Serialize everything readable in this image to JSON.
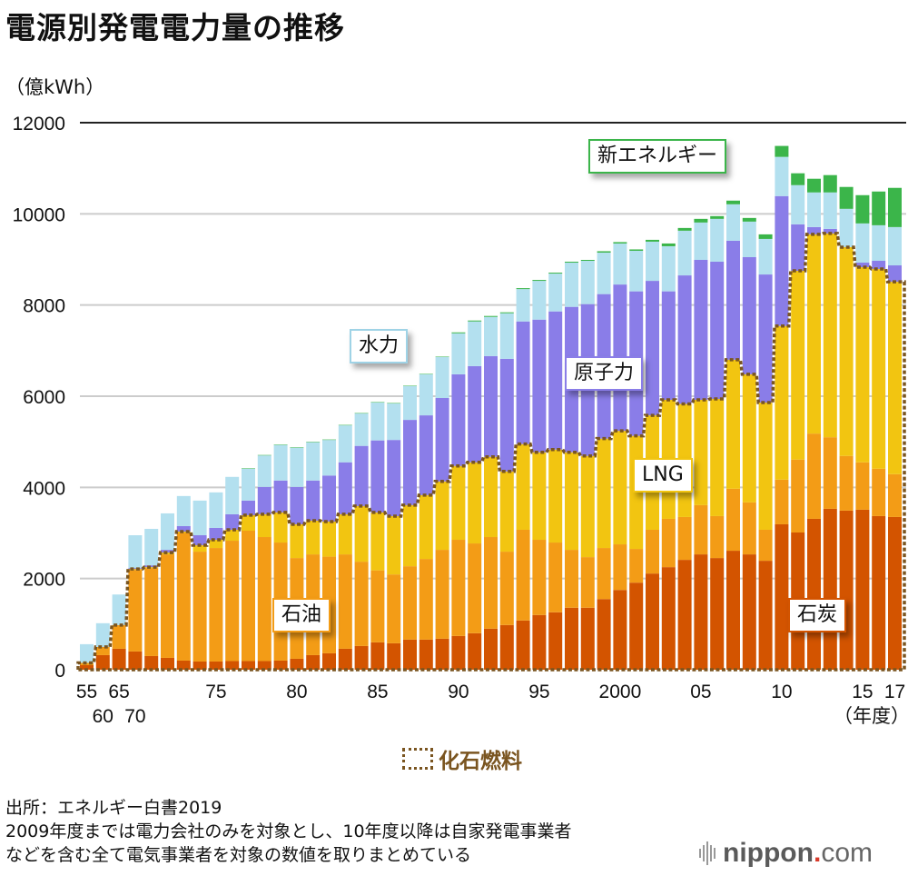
{
  "title": "電源別発電電力量の推移",
  "unit_label": "（億kWh）",
  "x_unit_label": "（年度）",
  "labels": {
    "new_energy": "新エネルギー",
    "hydro": "水力",
    "nuclear": "原子力",
    "lng": "LNG",
    "oil": "石油",
    "coal": "石炭",
    "fossil": "化石燃料"
  },
  "notes": {
    "source": "出所：エネルギー白書2019",
    "line1": "2009年度までは電力会社のみを対象とし、10年度以降は自家発電事業者",
    "line2": "などを含む全て電気事業者を対象の数値を取りまとめている"
  },
  "brand": {
    "name": "nippon",
    "dot": ".",
    "tld": "com"
  },
  "colors": {
    "coal": "#d35400",
    "oil": "#f39c16",
    "lng": "#f2c511",
    "nuclear": "#8a7de8",
    "hydro": "#b3e0ef",
    "new_energy": "#3bb54a",
    "fossil_line": "#7a5520",
    "grid": "#cccccc",
    "top_line": "#222222"
  },
  "chart_data": {
    "type": "bar",
    "stacked": true,
    "title": "電源別発電電力量の推移",
    "ylabel": "億kWh",
    "xlabel": "年度",
    "ylim": [
      0,
      12000
    ],
    "yticks": [
      0,
      2000,
      4000,
      6000,
      8000,
      10000,
      12000
    ],
    "grid": true,
    "x_tick_labels": [
      {
        "year": 1955,
        "label": "55",
        "row": 1
      },
      {
        "year": 1960,
        "label": "60",
        "row": 2
      },
      {
        "year": 1965,
        "label": "65",
        "row": 1
      },
      {
        "year": 1970,
        "label": "70",
        "row": 2
      },
      {
        "year": 1975,
        "label": "75",
        "row": 1
      },
      {
        "year": 1980,
        "label": "80",
        "row": 1
      },
      {
        "year": 1985,
        "label": "85",
        "row": 1
      },
      {
        "year": 1990,
        "label": "90",
        "row": 1
      },
      {
        "year": 1995,
        "label": "95",
        "row": 1
      },
      {
        "year": 2000,
        "label": "2000",
        "row": 1
      },
      {
        "year": 2005,
        "label": "05",
        "row": 1
      },
      {
        "year": 2010,
        "label": "10",
        "row": 1
      },
      {
        "year": 2015,
        "label": "15",
        "row": 1
      },
      {
        "year": 2017,
        "label": "17",
        "row": 1
      }
    ],
    "categories": [
      1955,
      1960,
      1965,
      1970,
      1971,
      1972,
      1973,
      1974,
      1975,
      1976,
      1977,
      1978,
      1979,
      1980,
      1981,
      1982,
      1983,
      1984,
      1985,
      1986,
      1987,
      1988,
      1989,
      1990,
      1991,
      1992,
      1993,
      1994,
      1995,
      1996,
      1997,
      1998,
      1999,
      2000,
      2001,
      2002,
      2003,
      2004,
      2005,
      2006,
      2007,
      2008,
      2009,
      2010,
      2011,
      2012,
      2013,
      2014,
      2015,
      2016,
      2017
    ],
    "series": [
      {
        "name": "石炭",
        "key": "coal",
        "values": [
          100,
          320,
          460,
          400,
          300,
          260,
          200,
          180,
          180,
          190,
          190,
          190,
          200,
          240,
          320,
          360,
          460,
          520,
          600,
          580,
          660,
          660,
          680,
          740,
          800,
          900,
          980,
          1080,
          1200,
          1260,
          1360,
          1360,
          1550,
          1750,
          1910,
          2110,
          2250,
          2410,
          2530,
          2450,
          2610,
          2530,
          2390,
          3190,
          3010,
          3310,
          3530,
          3490,
          3510,
          3370,
          3350
        ]
      },
      {
        "name": "石油",
        "key": "oil",
        "values": [
          50,
          180,
          520,
          1790,
          1930,
          2270,
          2800,
          2410,
          2490,
          2640,
          2860,
          2720,
          2590,
          2210,
          2210,
          2120,
          2070,
          1850,
          1580,
          1510,
          1610,
          1770,
          1950,
          2110,
          1970,
          2010,
          1610,
          1990,
          1650,
          1530,
          1270,
          1110,
          1120,
          1000,
          740,
          960,
          1060,
          940,
          1080,
          920,
          1360,
          1140,
          680,
          980,
          1600,
          1870,
          1570,
          1200,
          1040,
          1040,
          940
        ]
      },
      {
        "name": "LNG",
        "key": "lng",
        "values": [
          0,
          0,
          0,
          20,
          20,
          40,
          30,
          140,
          180,
          240,
          340,
          500,
          660,
          740,
          740,
          770,
          880,
          1220,
          1270,
          1280,
          1340,
          1400,
          1500,
          1620,
          1780,
          1760,
          1760,
          1880,
          1920,
          2040,
          2140,
          2220,
          2400,
          2490,
          2480,
          2510,
          2610,
          2480,
          2310,
          2570,
          2830,
          2810,
          2790,
          3370,
          4140,
          4370,
          4470,
          4580,
          4280,
          4380,
          4220
        ]
      },
      {
        "name": "原子力",
        "key": "nuclear",
        "values": [
          0,
          0,
          0,
          20,
          40,
          60,
          120,
          220,
          260,
          340,
          320,
          600,
          700,
          820,
          880,
          1010,
          1140,
          1320,
          1580,
          1670,
          1870,
          1750,
          1830,
          2010,
          2110,
          2210,
          2470,
          2690,
          2910,
          3030,
          3190,
          3330,
          3170,
          3210,
          3170,
          2950,
          2380,
          2820,
          3070,
          3010,
          2610,
          2570,
          2810,
          2850,
          1020,
          160,
          100,
          0,
          100,
          180,
          360
        ]
      },
      {
        "name": "水力",
        "key": "hydro",
        "values": [
          410,
          520,
          670,
          720,
          800,
          800,
          660,
          760,
          780,
          820,
          700,
          690,
          780,
          860,
          840,
          780,
          810,
          710,
          830,
          800,
          740,
          900,
          900,
          900,
          980,
          860,
          1000,
          710,
          850,
          830,
          970,
          950,
          910,
          900,
          890,
          860,
          990,
          980,
          820,
          940,
          800,
          780,
          780,
          860,
          860,
          760,
          800,
          840,
          860,
          780,
          840
        ]
      },
      {
        "name": "新エネルギー",
        "key": "new_energy",
        "values": [
          0,
          0,
          0,
          0,
          0,
          0,
          0,
          0,
          0,
          0,
          10,
          10,
          10,
          10,
          10,
          10,
          10,
          10,
          10,
          10,
          10,
          10,
          10,
          20,
          20,
          20,
          20,
          20,
          20,
          20,
          20,
          20,
          30,
          30,
          30,
          40,
          60,
          60,
          80,
          60,
          80,
          80,
          100,
          240,
          260,
          300,
          380,
          480,
          620,
          740,
          860
        ]
      }
    ],
    "fossil_fuel_line": {
      "name": "化石燃料",
      "description": "sum of 石炭 + 石油 + LNG, dotted outline"
    }
  }
}
